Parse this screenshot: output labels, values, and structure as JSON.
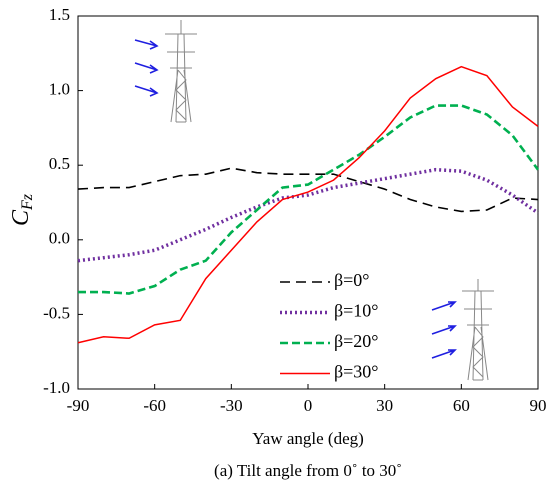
{
  "chart_data": {
    "type": "line",
    "caption": "(a) Tilt angle from 0˚  to 30˚",
    "x_label": "Yaw angle (deg)",
    "y_label": {
      "main": "C",
      "sub": "Fz"
    },
    "x": [
      -90,
      -80,
      -70,
      -60,
      -50,
      -40,
      -30,
      -20,
      -10,
      0,
      10,
      20,
      30,
      40,
      50,
      60,
      70,
      80,
      90
    ],
    "series": [
      {
        "name": "β=0°",
        "color": "#000000",
        "dash": "10,6",
        "width": 1.6,
        "values": [
          0.34,
          0.35,
          0.35,
          0.39,
          0.43,
          0.44,
          0.48,
          0.45,
          0.44,
          0.44,
          0.44,
          0.39,
          0.34,
          0.27,
          0.22,
          0.19,
          0.2,
          0.28,
          0.27
        ]
      },
      {
        "name": "β=10°",
        "color": "#7030a0",
        "dash": "2,3",
        "width": 3.5,
        "values": [
          -0.14,
          -0.12,
          -0.1,
          -0.07,
          0.0,
          0.07,
          0.15,
          0.22,
          0.28,
          0.3,
          0.35,
          0.38,
          0.41,
          0.44,
          0.47,
          0.46,
          0.4,
          0.3,
          0.18
        ]
      },
      {
        "name": "β=20°",
        "color": "#00b050",
        "dash": "8,4",
        "width": 2.6,
        "values": [
          -0.35,
          -0.35,
          -0.36,
          -0.31,
          -0.2,
          -0.14,
          0.05,
          0.2,
          0.35,
          0.37,
          0.47,
          0.57,
          0.69,
          0.82,
          0.9,
          0.9,
          0.84,
          0.7,
          0.47
        ]
      },
      {
        "name": "β=30°",
        "color": "#ff0000",
        "dash": "none",
        "width": 1.5,
        "values": [
          -0.69,
          -0.65,
          -0.66,
          -0.57,
          -0.54,
          -0.26,
          -0.07,
          0.12,
          0.27,
          0.32,
          0.4,
          0.55,
          0.73,
          0.95,
          1.08,
          1.16,
          1.1,
          0.89,
          0.76
        ]
      }
    ],
    "xlim": [
      -90,
      90
    ],
    "xticks": [
      -90,
      -60,
      -30,
      0,
      30,
      60,
      90
    ],
    "ylim": [
      -1.0,
      1.5
    ],
    "yticks": [
      {
        "value": -1.0,
        "label": "-1.0"
      },
      -0.5,
      {
        "value": 0.0,
        "label": "0.0"
      },
      0.5,
      {
        "value": 1.0,
        "label": "1.0"
      },
      1.5
    ]
  }
}
